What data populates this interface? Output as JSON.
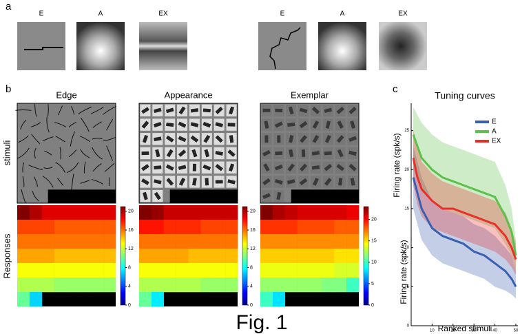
{
  "panel_labels": [
    "a",
    "b",
    "c"
  ],
  "panel_a": {
    "labels": [
      "E",
      "A",
      "EX",
      "E",
      "A",
      "EX"
    ]
  },
  "panel_b": {
    "row_labels": [
      "stimuli",
      "Responses"
    ],
    "charts": [
      {
        "type": "heatmap",
        "title": "Edge",
        "clim": [
          0,
          21
        ],
        "cticks": [
          0,
          4,
          8,
          12,
          16,
          20
        ],
        "values": [
          [
            21,
            20,
            19,
            19,
            19,
            19,
            19,
            19
          ],
          [
            17,
            17,
            17,
            16.5,
            16.5,
            16.5,
            16.5,
            16.5
          ],
          [
            16,
            16,
            16,
            16,
            16,
            16,
            16,
            16
          ],
          [
            15,
            15,
            15,
            14.5,
            14.5,
            14.5,
            14.5,
            14.5
          ],
          [
            13,
            13,
            13,
            13,
            13,
            13,
            13,
            13
          ],
          [
            11.5,
            11.5,
            11.5,
            11,
            11,
            11,
            11,
            11
          ],
          [
            10,
            7,
            null,
            null,
            null,
            null,
            null,
            null
          ]
        ]
      },
      {
        "type": "heatmap",
        "title": "Appearance",
        "clim": [
          0,
          21
        ],
        "cticks": [
          0,
          4,
          8,
          12,
          16,
          20
        ],
        "values": [
          [
            21,
            20.5,
            19.5,
            19.5,
            19.5,
            19.5,
            19.5,
            19.5
          ],
          [
            18,
            18,
            17.5,
            17.5,
            17.5,
            17,
            17,
            17
          ],
          [
            16,
            16,
            16,
            16,
            16,
            16,
            16,
            16
          ],
          [
            15,
            15,
            15,
            15,
            14.5,
            14.5,
            14.5,
            14.5
          ],
          [
            13,
            13,
            13,
            13,
            13,
            13,
            13,
            13
          ],
          [
            11.5,
            11.5,
            11.5,
            11.5,
            11.5,
            11,
            11,
            11
          ],
          [
            10,
            7.5,
            null,
            null,
            null,
            null,
            null,
            null
          ]
        ]
      },
      {
        "type": "heatmap",
        "title": "Exemplar",
        "clim": [
          0,
          23
        ],
        "cticks": [
          0,
          5,
          10,
          15,
          20
        ],
        "values": [
          [
            23,
            22,
            21.5,
            21,
            21,
            21,
            21,
            20.5
          ],
          [
            19,
            19,
            19,
            18.5,
            18.5,
            18.5,
            18,
            18
          ],
          [
            17,
            17,
            17,
            17,
            17,
            17,
            17,
            17
          ],
          [
            15.5,
            15.5,
            15.5,
            15.5,
            15.5,
            15.5,
            15,
            15
          ],
          [
            14,
            14,
            14,
            14,
            14,
            14,
            13.5,
            13.5
          ],
          [
            12,
            12,
            12,
            12,
            12,
            11.5,
            11.5,
            10
          ],
          [
            10,
            8,
            null,
            null,
            null,
            null,
            null,
            null
          ]
        ]
      }
    ]
  },
  "chart_data": {
    "type": "line",
    "title": "Tuning curves",
    "xlabel": "Ranked stimuli",
    "ylabels": [
      "Firing rate (spk/s)",
      "Firing rate (spk/s)"
    ],
    "x": [
      1,
      3,
      5,
      10,
      15,
      20,
      25,
      30,
      35,
      40,
      45,
      48,
      50
    ],
    "xlim": [
      0,
      51
    ],
    "ylim": [
      0,
      28.5
    ],
    "xticks": [
      10,
      20,
      30,
      40,
      50
    ],
    "yticks": [
      0,
      5,
      10,
      15,
      20,
      25
    ],
    "series": [
      {
        "name": "E",
        "color": "#3a5fb0",
        "values": [
          19,
          17,
          15,
          12.5,
          11.5,
          11,
          10.5,
          9.5,
          9,
          8,
          7,
          6,
          5
        ],
        "lower": [
          15,
          13,
          11,
          9,
          8,
          7.5,
          7,
          6.5,
          6,
          5,
          4.5,
          4,
          3.5
        ],
        "upper": [
          23,
          21,
          19,
          16,
          15,
          14.5,
          14,
          13,
          12.5,
          11.5,
          10,
          9,
          7
        ]
      },
      {
        "name": "A",
        "color": "#5cc04a",
        "values": [
          24.5,
          23,
          21.5,
          20,
          19,
          18.5,
          18,
          17.5,
          17,
          16.5,
          14,
          12,
          9
        ],
        "lower": [
          20,
          19,
          17.5,
          16,
          15,
          14.5,
          14,
          13.5,
          13,
          12.5,
          10.5,
          9,
          7
        ],
        "upper": [
          28,
          27,
          26,
          24.5,
          23.5,
          23,
          22.5,
          22,
          21.5,
          21,
          18,
          15,
          11
        ]
      },
      {
        "name": "EX",
        "color": "#e8302a",
        "values": [
          21.5,
          19,
          17.5,
          16,
          15,
          15,
          14.5,
          14,
          13.5,
          13,
          11.5,
          10,
          8.5
        ],
        "lower": [
          18,
          15.5,
          14,
          12.5,
          12,
          11.5,
          11,
          10.5,
          10,
          9.5,
          8.5,
          7.5,
          6.5
        ],
        "upper": [
          25,
          23,
          21,
          19.5,
          18.5,
          18,
          17.5,
          17,
          16.5,
          16,
          14.5,
          12.5,
          10.5
        ]
      }
    ]
  },
  "caption": "Fig. 1"
}
